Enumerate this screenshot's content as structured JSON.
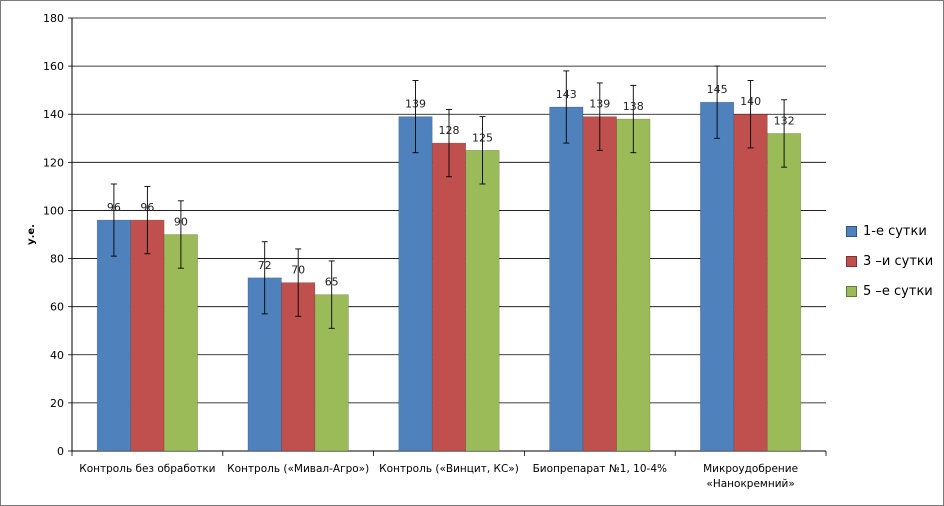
{
  "chart_data": {
    "type": "bar",
    "title": "",
    "xlabel": "",
    "ylabel": "у.е.",
    "ylim": [
      0,
      180
    ],
    "yticks": [
      0,
      20,
      40,
      60,
      80,
      100,
      120,
      140,
      160,
      180
    ],
    "grid": true,
    "legend_position": "right",
    "categories": [
      [
        "Контроль без обработки"
      ],
      [
        "Контроль («Мивал-Агро»)"
      ],
      [
        "Контроль («Винцит, КС»)"
      ],
      [
        "Биопрепарат №1, 10-4%"
      ],
      [
        "Микроудобрение",
        "«Нанокремний»"
      ]
    ],
    "series": [
      {
        "name": "1-е  сутки",
        "color": "#4f81bd",
        "values": [
          96,
          72,
          139,
          143,
          145
        ],
        "errors": [
          15,
          15,
          15,
          15,
          15
        ]
      },
      {
        "name": "3 –и сутки",
        "color": "#c0504d",
        "values": [
          96,
          70,
          128,
          139,
          140
        ],
        "errors": [
          14,
          14,
          14,
          14,
          14
        ]
      },
      {
        "name": "5 –е сутки",
        "color": "#9bbb59",
        "values": [
          90,
          65,
          125,
          138,
          132
        ],
        "errors": [
          14,
          14,
          14,
          14,
          14
        ]
      }
    ]
  }
}
